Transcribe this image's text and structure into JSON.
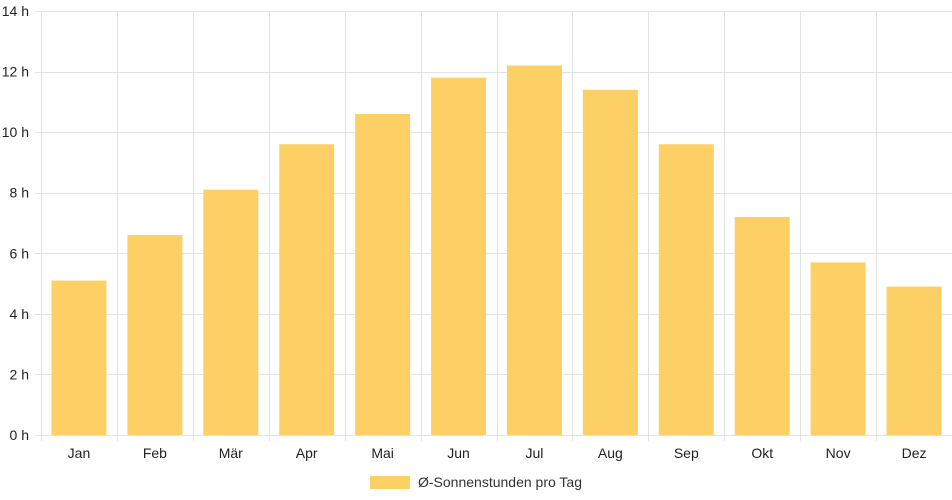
{
  "chart_data": {
    "type": "bar",
    "categories": [
      "Jan",
      "Feb",
      "Mär",
      "Apr",
      "Mai",
      "Jun",
      "Jul",
      "Aug",
      "Sep",
      "Okt",
      "Nov",
      "Dez"
    ],
    "series": [
      {
        "name": "Ø-Sonnenstunden pro Tag",
        "values": [
          5.1,
          6.6,
          8.1,
          9.6,
          10.6,
          11.8,
          12.2,
          11.4,
          9.6,
          7.2,
          5.7,
          4.9
        ],
        "color": "#fdd066"
      }
    ],
    "ylim": [
      0,
      14
    ],
    "yticks": [
      0,
      2,
      4,
      6,
      8,
      10,
      12,
      14
    ],
    "ytick_suffix": " h",
    "ytick_labels": [
      "0 h",
      "2 h",
      "4 h",
      "6 h",
      "8 h",
      "10 h",
      "12 h",
      "14 h"
    ],
    "grid": true,
    "legend_position": "bottom-center"
  }
}
